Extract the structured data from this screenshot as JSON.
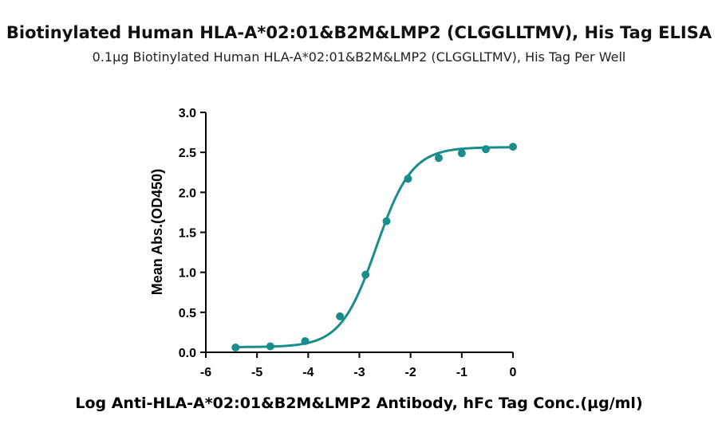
{
  "chart_data": {
    "type": "scatter",
    "title": "Biotinylated Human HLA-A*02:01&B2M&LMP2 (CLGGLLTMV), His Tag ELISA",
    "subtitle": "0.1µg Biotinylated Human HLA-A*02:01&B2M&LMP2 (CLGGLLTMV), His Tag Per Well",
    "xlabel": "Log Anti-HLA-A*02:01&B2M&LMP2 Antibody, hFc Tag Conc.(µg/ml)",
    "ylabel": "Mean Abs.(OD450)",
    "xlim": [
      -6,
      0
    ],
    "ylim": [
      0,
      3
    ],
    "x_ticks": [
      -6,
      -5,
      -4,
      -3,
      -2,
      -1,
      0
    ],
    "x_tick_labels": [
      "-6",
      "-5",
      "-4",
      "-3",
      "-2",
      "-1",
      "0"
    ],
    "y_ticks": [
      0,
      0.5,
      1,
      1.5,
      2,
      2.5,
      3
    ],
    "y_tick_labels": [
      "0.0",
      "0.5",
      "1.0",
      "1.5",
      "2.0",
      "2.5",
      "3.0"
    ],
    "grid": false,
    "color": "#1a8c8c",
    "series": [
      {
        "x": [
          -5.42,
          -4.74,
          -4.06,
          -3.38,
          -2.88,
          -2.47,
          -2.05,
          -1.45,
          -1.0,
          -0.53,
          0
        ],
        "y": [
          0.06,
          0.075,
          0.14,
          0.45,
          0.97,
          1.64,
          2.17,
          2.43,
          2.49,
          2.54,
          2.57
        ]
      }
    ],
    "fit": {
      "model": "4PL",
      "bottom": 0.065,
      "top": 2.565,
      "log_ec50": -2.67,
      "hill_slope": 1.25
    }
  }
}
